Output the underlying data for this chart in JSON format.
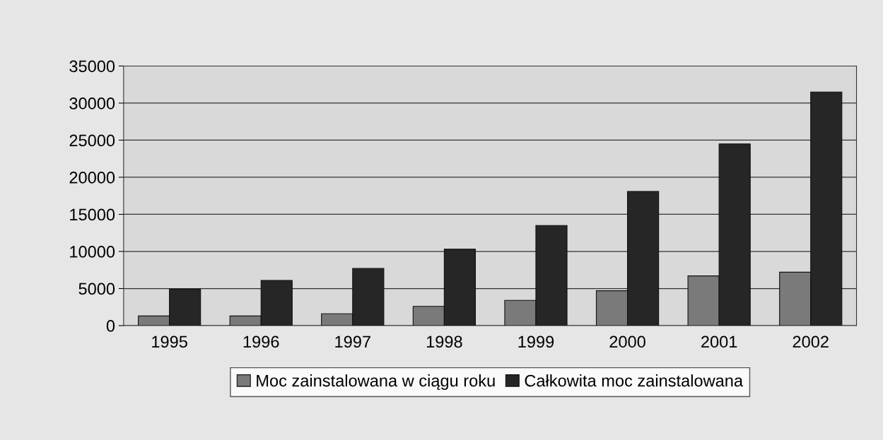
{
  "chart_data": {
    "type": "bar",
    "categories": [
      "1995",
      "1996",
      "1997",
      "1998",
      "1999",
      "2000",
      "2001",
      "2002"
    ],
    "series": [
      {
        "name": "Moc zainstalowana w ciągu roku",
        "color": "#7a7a7a",
        "values": [
          1300,
          1300,
          1600,
          2600,
          3400,
          4700,
          6700,
          7200
        ]
      },
      {
        "name": "Całkowita moc zainstalowana",
        "color": "#262626",
        "values": [
          4900,
          6100,
          7700,
          10300,
          13500,
          18100,
          24500,
          31500
        ]
      }
    ],
    "ylim": [
      0,
      35000
    ],
    "yticks": [
      0,
      5000,
      10000,
      15000,
      20000,
      25000,
      30000,
      35000
    ],
    "grid": "y",
    "legend": "bottom"
  }
}
